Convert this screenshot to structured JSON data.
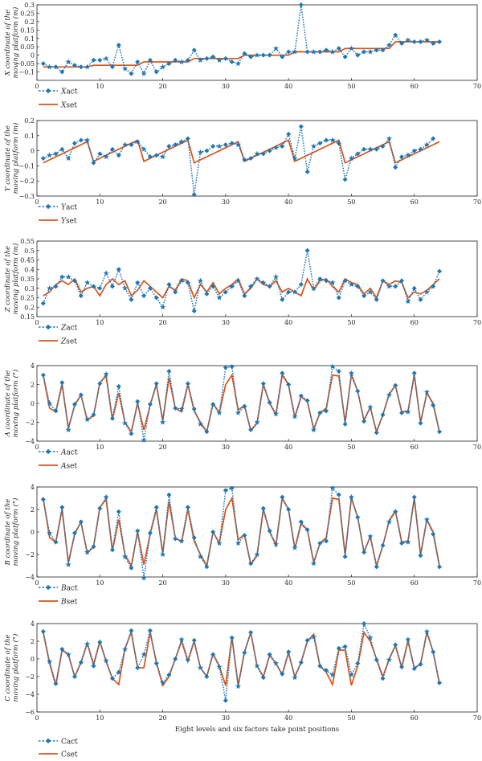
{
  "colors": {
    "act": "#1f77b4",
    "set": "#d95319",
    "axis": "#231f20"
  },
  "xlabel": "Eight levels and six factors take point positions",
  "chart_data": [
    {
      "type": "line",
      "ylabel": [
        "X coordinate of the",
        "moving platform (m)"
      ],
      "xlim": [
        0,
        70
      ],
      "ylim": [
        -0.15,
        0.3
      ],
      "xticks": [
        0,
        10,
        20,
        30,
        40,
        50,
        60,
        70
      ],
      "yticks": [
        -0.1,
        -0.05,
        0,
        0.05,
        0.1,
        0.15,
        0.2,
        0.25,
        0.3
      ],
      "yticklabels": [
        "−0.1",
        "−0.05",
        "0",
        "0.05",
        "0.1",
        "0.15",
        "0.2",
        "0.25",
        "0.3"
      ],
      "series": [
        {
          "name": "Xact",
          "name_italic": "X",
          "name_rest": "act",
          "y": [
            -0.05,
            -0.07,
            -0.07,
            -0.1,
            -0.04,
            -0.06,
            -0.07,
            -0.07,
            -0.03,
            -0.03,
            -0.02,
            -0.07,
            0.06,
            -0.08,
            -0.11,
            -0.04,
            -0.11,
            -0.03,
            -0.1,
            -0.07,
            -0.05,
            -0.03,
            -0.04,
            -0.03,
            0.03,
            -0.03,
            -0.02,
            -0.01,
            -0.03,
            -0.02,
            -0.04,
            -0.05,
            0.01,
            -0.01,
            0.0,
            0.0,
            0.0,
            0.04,
            -0.01,
            0.02,
            0.02,
            0.3,
            0.02,
            0.02,
            0.02,
            0.03,
            0.02,
            0.04,
            -0.01,
            0.04,
            0.0,
            0.02,
            0.02,
            0.03,
            0.03,
            0.06,
            0.12,
            0.07,
            0.09,
            0.08,
            0.08,
            0.09,
            0.07,
            0.08
          ]
        },
        {
          "name": "Xset",
          "name_italic": "X",
          "name_rest": "set",
          "y": [
            -0.07,
            -0.07,
            -0.07,
            -0.07,
            -0.07,
            -0.07,
            -0.07,
            -0.07,
            -0.06,
            -0.06,
            -0.06,
            -0.06,
            -0.06,
            -0.06,
            -0.06,
            -0.06,
            -0.04,
            -0.04,
            -0.04,
            -0.04,
            -0.04,
            -0.04,
            -0.04,
            -0.04,
            -0.02,
            -0.02,
            -0.02,
            -0.02,
            -0.02,
            -0.02,
            -0.02,
            -0.02,
            0.0,
            0.0,
            0.0,
            0.0,
            0.0,
            0.0,
            0.0,
            0.0,
            0.02,
            0.02,
            0.02,
            0.02,
            0.02,
            0.02,
            0.02,
            0.02,
            0.04,
            0.04,
            0.04,
            0.04,
            0.04,
            0.04,
            0.04,
            0.04,
            0.08,
            0.08,
            0.08,
            0.08,
            0.08,
            0.08,
            0.08,
            0.08
          ]
        }
      ]
    },
    {
      "type": "line",
      "ylabel": [
        "Y coordinate of the",
        "moving platform (m)"
      ],
      "xlim": [
        0,
        70
      ],
      "ylim": [
        -0.3,
        0.2
      ],
      "xticks": [
        0,
        10,
        20,
        30,
        40,
        50,
        60,
        70
      ],
      "yticks": [
        -0.3,
        -0.2,
        -0.1,
        0,
        0.1,
        0.2
      ],
      "yticklabels": [
        "−0.3",
        "−0.2",
        "−0.1",
        "0",
        "0.1",
        "0.2"
      ],
      "series": [
        {
          "name": "Yact",
          "name_italic": "Y",
          "name_rest": "act",
          "y": [
            -0.05,
            -0.03,
            -0.02,
            0.01,
            -0.05,
            0.05,
            0.07,
            0.07,
            -0.08,
            -0.02,
            -0.04,
            0.01,
            -0.03,
            0.04,
            0.04,
            0.06,
            0.01,
            -0.04,
            -0.03,
            -0.04,
            0.03,
            0.04,
            0.06,
            0.08,
            -0.29,
            -0.01,
            0.0,
            0.03,
            0.03,
            0.04,
            0.05,
            0.04,
            -0.06,
            -0.05,
            -0.02,
            -0.02,
            0.0,
            0.02,
            0.03,
            0.11,
            -0.05,
            0.16,
            -0.14,
            0.03,
            0.05,
            0.07,
            0.07,
            0.05,
            -0.19,
            -0.05,
            -0.02,
            0.01,
            0.01,
            0.01,
            0.03,
            0.08,
            -0.11,
            -0.04,
            -0.03,
            0.0,
            0.01,
            0.04,
            0.08,
            null
          ]
        },
        {
          "name": "Yset",
          "name_italic": "Y",
          "name_rest": "set",
          "y": [
            -0.08,
            -0.06,
            -0.04,
            -0.02,
            0.0,
            0.02,
            0.04,
            0.06,
            -0.07,
            -0.05,
            -0.03,
            -0.01,
            0.01,
            0.03,
            0.05,
            0.07,
            -0.07,
            -0.05,
            -0.03,
            -0.01,
            0.01,
            0.03,
            0.05,
            0.07,
            -0.08,
            -0.06,
            -0.04,
            -0.02,
            0.0,
            0.02,
            0.04,
            0.06,
            -0.07,
            -0.05,
            -0.03,
            -0.01,
            0.01,
            0.03,
            0.05,
            0.07,
            -0.07,
            -0.05,
            -0.03,
            -0.01,
            0.01,
            0.03,
            0.05,
            0.07,
            -0.08,
            -0.06,
            -0.04,
            -0.02,
            0.0,
            0.02,
            0.04,
            0.06,
            -0.08,
            -0.06,
            -0.04,
            -0.02,
            0.0,
            0.02,
            0.04,
            0.06
          ]
        }
      ]
    },
    {
      "type": "line",
      "ylabel": [
        "Z coordinate of the",
        "moving platform (m)"
      ],
      "xlim": [
        0,
        70
      ],
      "ylim": [
        0.15,
        0.55
      ],
      "xticks": [
        0,
        10,
        20,
        30,
        40,
        50,
        60,
        70
      ],
      "yticks": [
        0.15,
        0.2,
        0.25,
        0.3,
        0.35,
        0.4,
        0.45,
        0.5,
        0.55
      ],
      "yticklabels": [
        "0.15",
        "0.2",
        "0.25",
        "0.3",
        "0.35",
        "0.4",
        "0.45",
        "0.5",
        "0.55"
      ],
      "series": [
        {
          "name": "Zact",
          "name_italic": "Z",
          "name_rest": "act",
          "y": [
            0.22,
            0.3,
            0.31,
            0.36,
            0.36,
            0.34,
            0.26,
            0.33,
            0.31,
            0.3,
            0.38,
            0.31,
            0.4,
            0.3,
            0.24,
            0.33,
            0.26,
            0.3,
            0.25,
            0.2,
            0.32,
            0.28,
            0.34,
            0.33,
            0.18,
            0.34,
            0.27,
            0.31,
            0.25,
            0.28,
            0.31,
            0.34,
            0.26,
            0.31,
            0.35,
            0.33,
            0.31,
            0.36,
            0.24,
            0.28,
            0.28,
            0.32,
            0.5,
            0.3,
            0.35,
            0.34,
            0.33,
            0.25,
            0.34,
            0.32,
            0.31,
            0.26,
            0.28,
            0.24,
            0.34,
            0.31,
            0.31,
            0.34,
            0.23,
            0.3,
            0.24,
            0.28,
            0.31,
            0.39
          ]
        },
        {
          "name": "Zset",
          "name_italic": "Z",
          "name_rest": "set",
          "y": [
            0.26,
            0.28,
            0.32,
            0.34,
            0.32,
            0.35,
            0.28,
            0.3,
            0.31,
            0.26,
            0.32,
            0.35,
            0.32,
            0.34,
            0.26,
            0.29,
            0.34,
            0.31,
            0.28,
            0.25,
            0.31,
            0.29,
            0.35,
            0.34,
            0.25,
            0.32,
            0.28,
            0.33,
            0.27,
            0.3,
            0.32,
            0.35,
            0.27,
            0.3,
            0.35,
            0.32,
            0.31,
            0.34,
            0.28,
            0.3,
            0.28,
            0.26,
            0.35,
            0.29,
            0.34,
            0.35,
            0.31,
            0.28,
            0.35,
            0.33,
            0.32,
            0.27,
            0.3,
            0.25,
            0.34,
            0.32,
            0.34,
            0.33,
            0.25,
            0.28,
            0.27,
            0.29,
            0.32,
            0.35
          ]
        }
      ]
    },
    {
      "type": "line",
      "ylabel": [
        "A coordinate of the",
        "moving platform (°)"
      ],
      "xlim": [
        0,
        70
      ],
      "ylim": [
        -4,
        4
      ],
      "xticks": [
        0,
        10,
        20,
        30,
        40,
        50,
        60,
        70
      ],
      "yticks": [
        -4,
        -2,
        0,
        2,
        4
      ],
      "yticklabels": [
        "−4",
        "−2",
        "0",
        "2",
        "4"
      ],
      "series": [
        {
          "name": "Aact",
          "name_italic": "A",
          "name_rest": "act",
          "y": [
            3.0,
            0.0,
            -0.8,
            2.2,
            -2.8,
            -0.1,
            0.9,
            -1.7,
            -1.2,
            2.1,
            3.1,
            -1.6,
            1.8,
            -2.1,
            -3.2,
            0.2,
            -3.9,
            -0.1,
            2.1,
            -2.0,
            3.4,
            -0.5,
            -0.6,
            2.1,
            -0.6,
            -2.2,
            -3.0,
            -0.1,
            -1.0,
            3.8,
            3.9,
            -1.0,
            -0.3,
            -2.8,
            -2.0,
            2.1,
            0.1,
            -1.1,
            3.2,
            2.0,
            -1.4,
            0.8,
            0.3,
            -2.8,
            -1.0,
            -0.8,
            3.9,
            3.4,
            -2.2,
            3.2,
            1.3,
            -1.9,
            -0.4,
            -3.1,
            -1.2,
            0.9,
            1.9,
            -1.0,
            -0.9,
            3.2,
            -2.1,
            1.2,
            -0.2,
            -3.0
          ]
        },
        {
          "name": "Aset",
          "name_italic": "A",
          "name_rest": "set",
          "y": [
            3.0,
            -0.5,
            -0.9,
            2.0,
            -2.6,
            -0.2,
            0.9,
            -1.8,
            -1.3,
            2.2,
            2.9,
            -1.7,
            1.1,
            -2.0,
            -3.0,
            0.0,
            -2.8,
            -0.2,
            2.0,
            -1.8,
            2.7,
            -0.5,
            -0.9,
            2.0,
            -0.8,
            -2.0,
            -3.0,
            0.0,
            -1.0,
            2.0,
            3.0,
            -0.7,
            -0.2,
            -2.9,
            -2.1,
            2.0,
            0.0,
            -1.2,
            3.0,
            2.0,
            -1.5,
            0.7,
            0.2,
            -2.7,
            -1.0,
            -0.5,
            3.0,
            2.9,
            -2.0,
            3.0,
            1.3,
            -1.8,
            -0.4,
            -3.0,
            -1.2,
            1.0,
            1.9,
            -0.9,
            -0.8,
            3.0,
            -2.0,
            1.1,
            0.0,
            -3.0
          ]
        }
      ]
    },
    {
      "type": "line",
      "ylabel": [
        "B coordinate of the",
        "moving platform (°)"
      ],
      "xlim": [
        0,
        70
      ],
      "ylim": [
        -4,
        4
      ],
      "xticks": [
        0,
        10,
        20,
        30,
        40,
        50,
        60,
        70
      ],
      "yticks": [
        -4,
        -2,
        0,
        2,
        4
      ],
      "yticklabels": [
        "−4",
        "−2",
        "0",
        "2",
        "4"
      ],
      "series": [
        {
          "name": "Bact",
          "name_italic": "B",
          "name_rest": "act",
          "y": [
            2.9,
            -0.1,
            -0.9,
            2.2,
            -2.9,
            -0.1,
            0.9,
            -1.8,
            -1.3,
            2.1,
            3.1,
            -1.6,
            1.8,
            -2.2,
            -3.2,
            0.1,
            -4.1,
            -0.1,
            2.2,
            -2.0,
            3.3,
            -0.6,
            -0.8,
            2.2,
            -0.5,
            -2.2,
            -3.1,
            0.0,
            -1.0,
            3.7,
            3.9,
            -1.0,
            -0.3,
            -2.8,
            -2.0,
            2.1,
            0.1,
            -1.1,
            3.1,
            2.0,
            -1.4,
            0.9,
            0.2,
            -2.8,
            -1.0,
            -0.8,
            3.9,
            3.3,
            -2.2,
            3.1,
            1.3,
            -1.8,
            -0.4,
            -3.1,
            -1.2,
            0.9,
            1.8,
            -1.0,
            -0.9,
            3.1,
            -2.1,
            1.1,
            -0.2,
            -3.1
          ]
        },
        {
          "name": "Bset",
          "name_italic": "B",
          "name_rest": "set",
          "y": [
            3.0,
            -0.5,
            -0.9,
            2.0,
            -2.7,
            -0.2,
            0.9,
            -1.9,
            -1.3,
            2.2,
            2.9,
            -1.7,
            1.1,
            -2.0,
            -3.0,
            0.0,
            -2.9,
            -0.2,
            2.0,
            -1.9,
            2.7,
            -0.5,
            -0.9,
            2.0,
            -0.8,
            -2.0,
            -3.0,
            0.0,
            -1.0,
            2.0,
            3.0,
            -0.7,
            -0.2,
            -2.9,
            -2.1,
            2.0,
            0.0,
            -1.2,
            3.0,
            2.0,
            -1.5,
            0.7,
            0.2,
            -2.7,
            -1.0,
            -0.5,
            3.0,
            2.9,
            -2.0,
            3.0,
            1.3,
            -1.8,
            -0.4,
            -3.0,
            -1.2,
            1.0,
            1.9,
            -0.9,
            -0.8,
            3.0,
            -2.0,
            1.1,
            0.0,
            -3.0
          ]
        }
      ]
    },
    {
      "type": "line",
      "ylabel": [
        "C coordinate of the",
        "moving platform (°)"
      ],
      "xlim": [
        0,
        70
      ],
      "ylim": [
        -6,
        4
      ],
      "xticks": [
        0,
        10,
        20,
        30,
        40,
        50,
        60,
        70
      ],
      "yticks": [
        -6,
        -4,
        -2,
        0,
        2,
        4
      ],
      "yticklabels": [
        "−6",
        "−4",
        "−2",
        "0",
        "2",
        "4"
      ],
      "series": [
        {
          "name": "Cact",
          "name_italic": "",
          "name_rest": "Cact",
          "y": [
            3.1,
            -0.3,
            -2.8,
            1.1,
            0.5,
            -2.0,
            -0.4,
            1.7,
            -0.8,
            1.9,
            -0.2,
            -2.2,
            -1.5,
            1.1,
            3.2,
            -1.0,
            0.5,
            3.2,
            -0.5,
            -2.7,
            -1.8,
            0.0,
            2.2,
            -0.1,
            2.1,
            -1.0,
            -2.0,
            0.5,
            -0.9,
            -4.7,
            2.4,
            -3.1,
            0.7,
            3.0,
            -0.8,
            -2.1,
            0.5,
            -0.5,
            -1.7,
            0.8,
            -2.1,
            -0.4,
            2.1,
            2.5,
            -0.8,
            -1.3,
            -1.8,
            1.2,
            1.4,
            -1.8,
            -0.5,
            4.0,
            2.4,
            -0.1,
            -2.2,
            -0.1,
            1.6,
            -0.9,
            2.2,
            -1.1,
            -0.6,
            3.1,
            0.8,
            -2.7
          ]
        },
        {
          "name": "Cset",
          "name_italic": "",
          "name_rest": "Cset",
          "y": [
            3.0,
            -0.5,
            -3.0,
            1.0,
            0.5,
            -2.0,
            -0.4,
            1.8,
            -0.6,
            2.0,
            -0.3,
            -2.2,
            -2.9,
            1.2,
            3.0,
            -1.0,
            -1.0,
            3.0,
            -0.4,
            -3.0,
            -2.0,
            0.0,
            2.0,
            -0.3,
            2.0,
            -1.0,
            -2.0,
            0.6,
            -0.8,
            -3.0,
            2.5,
            -3.0,
            0.8,
            3.0,
            -0.8,
            -2.0,
            0.4,
            -0.5,
            -1.8,
            0.7,
            -2.0,
            -0.4,
            2.0,
            2.8,
            -0.8,
            -1.5,
            -2.9,
            1.0,
            1.0,
            -3.0,
            -0.8,
            3.0,
            2.0,
            0.0,
            -2.0,
            0.0,
            1.5,
            -1.0,
            2.0,
            -1.0,
            -0.6,
            3.0,
            0.8,
            -2.8
          ]
        }
      ]
    }
  ]
}
